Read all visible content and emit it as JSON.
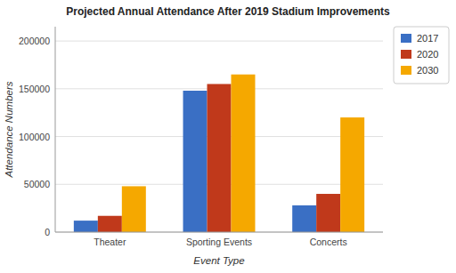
{
  "chart_data": {
    "type": "bar",
    "title": "Projected Annual Attendance After 2019 Stadium Improvements",
    "xlabel": "Event Type",
    "ylabel": "Attendance Numbers",
    "categories": [
      "Theater",
      "Sporting Events",
      "Concerts"
    ],
    "series": [
      {
        "name": "2017",
        "color": "#3a6fc4",
        "values": [
          12000,
          148000,
          28000
        ]
      },
      {
        "name": "2020",
        "color": "#c0391b",
        "values": [
          17000,
          155000,
          40000
        ]
      },
      {
        "name": "2030",
        "color": "#f5a800",
        "values": [
          48000,
          165000,
          120000
        ]
      }
    ],
    "ylim": [
      0,
      215000
    ],
    "yticks": [
      0,
      50000,
      100000,
      150000,
      200000
    ],
    "grid": true,
    "legend": "upper right"
  }
}
